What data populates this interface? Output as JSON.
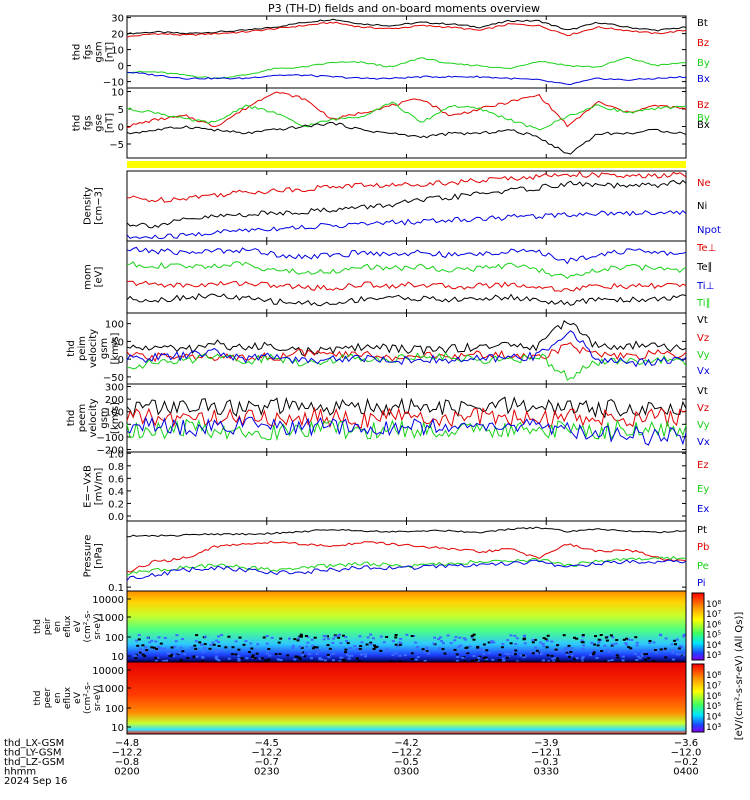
{
  "title": "P3 (TH-D) fields and on-board moments overview",
  "colors": {
    "black": "#000000",
    "red": "#e00000",
    "green": "#19d219",
    "blue": "#0000e0",
    "yellow": "#ffff00",
    "axis": "#000000"
  },
  "chart_data": [
    {
      "type": "line",
      "ylabel": [
        "thd",
        "fgs",
        "gsm",
        "[nT]"
      ],
      "ticks": [
        "30",
        "20",
        "10",
        "0",
        "−10"
      ],
      "tick_values": [
        30,
        20,
        10,
        0,
        -10
      ],
      "ylim": [
        -14,
        31
      ],
      "series": [
        {
          "name": "Bt",
          "color": "black",
          "values": [
            20,
            21,
            20,
            21,
            22,
            24,
            27,
            29,
            26,
            25,
            27,
            26,
            24,
            28,
            28,
            22,
            27,
            24,
            22,
            24
          ]
        },
        {
          "name": "Bz",
          "color": "red",
          "values": [
            18,
            20,
            19,
            20,
            21,
            23,
            25,
            27,
            24,
            23,
            25,
            24,
            22,
            26,
            25,
            19,
            24,
            22,
            20,
            22
          ]
        },
        {
          "name": "By",
          "color": "green",
          "values": [
            -4,
            -4,
            -6,
            -8,
            -6,
            -2,
            -1,
            2,
            2,
            -1,
            5,
            1,
            0,
            -2,
            3,
            0,
            -1,
            5,
            0,
            2
          ]
        },
        {
          "name": "Bx",
          "color": "blue",
          "values": [
            -4,
            -6,
            -8,
            -8,
            -8,
            -6,
            -6,
            -7,
            -8,
            -8,
            -7,
            -7,
            -7,
            -8,
            -9,
            -12,
            -8,
            -9,
            -8,
            -7
          ]
        }
      ]
    },
    {
      "type": "line",
      "ylabel": [
        "thd",
        "fgs",
        "gse",
        "[nT]"
      ],
      "ticks": [
        "10",
        "5",
        "0",
        "−5"
      ],
      "tick_values": [
        10,
        5,
        0,
        -5
      ],
      "ylim": [
        -9,
        11
      ],
      "series": [
        {
          "name": "Bz",
          "color": "red",
          "values": [
            0,
            2,
            3,
            0,
            5,
            10,
            8,
            2,
            4,
            6,
            8,
            3,
            5,
            7,
            9,
            0,
            7,
            4,
            6,
            5
          ]
        },
        {
          "name": "By",
          "color": "green",
          "values": [
            5,
            4,
            2,
            1,
            6,
            4,
            0,
            2,
            3,
            7,
            1,
            6,
            5,
            2,
            -1,
            3,
            6,
            4,
            5,
            6
          ]
        },
        {
          "name": "Bx",
          "color": "black",
          "values": [
            -2,
            -1,
            0,
            -1,
            -2,
            -1,
            0,
            1,
            -1,
            -2,
            -3,
            -2,
            -2,
            -1,
            -3,
            -8,
            -2,
            -2,
            -1,
            -2
          ]
        }
      ]
    },
    {
      "type": "line",
      "ylabel": [
        "Density",
        "[cm−3]"
      ],
      "ticks": [],
      "ylim": [
        0,
        1
      ],
      "series": [
        {
          "name": "Ne",
          "color": "red",
          "values": [
            0.62,
            0.58,
            0.62,
            0.66,
            0.7,
            0.72,
            0.74,
            0.78,
            0.8,
            0.79,
            0.82,
            0.84,
            0.86,
            0.9,
            0.92,
            0.96,
            0.94,
            0.92,
            0.93,
            0.95
          ]
        },
        {
          "name": "Ni",
          "color": "black",
          "values": [
            0.25,
            0.22,
            0.3,
            0.35,
            0.38,
            0.4,
            0.42,
            0.45,
            0.48,
            0.52,
            0.58,
            0.62,
            0.68,
            0.72,
            0.76,
            0.82,
            0.8,
            0.78,
            0.8,
            0.85
          ]
        },
        {
          "name": "Npot",
          "color": "blue",
          "values": [
            0.05,
            0.05,
            0.08,
            0.12,
            0.16,
            0.18,
            0.2,
            0.22,
            0.24,
            0.26,
            0.28,
            0.3,
            0.32,
            0.34,
            0.36,
            0.38,
            0.4,
            0.4,
            0.41,
            0.41
          ]
        }
      ]
    },
    {
      "type": "line",
      "ylabel": [
        "mom",
        "[eV]"
      ],
      "ticks": [],
      "ylim": [
        0,
        1
      ],
      "series": [
        {
          "name": "Te⊥",
          "color": "red",
          "values": [
            0.42,
            0.4,
            0.38,
            0.4,
            0.42,
            0.38,
            0.36,
            0.34,
            0.4,
            0.38,
            0.4,
            0.36,
            0.38,
            0.4,
            0.36,
            0.32,
            0.38,
            0.36,
            0.38,
            0.4
          ]
        },
        {
          "name": "Te∥",
          "color": "black",
          "values": [
            0.2,
            0.18,
            0.22,
            0.24,
            0.2,
            0.16,
            0.14,
            0.12,
            0.2,
            0.22,
            0.2,
            0.18,
            0.2,
            0.22,
            0.18,
            0.12,
            0.2,
            0.18,
            0.2,
            0.22
          ]
        },
        {
          "name": "Ti⊥",
          "color": "blue",
          "values": [
            0.88,
            0.86,
            0.84,
            0.86,
            0.88,
            0.82,
            0.78,
            0.8,
            0.84,
            0.82,
            0.84,
            0.8,
            0.82,
            0.86,
            0.84,
            0.72,
            0.82,
            0.86,
            0.84,
            0.82
          ]
        },
        {
          "name": "Ti∥",
          "color": "green",
          "values": [
            0.68,
            0.66,
            0.64,
            0.66,
            0.68,
            0.6,
            0.56,
            0.58,
            0.64,
            0.62,
            0.64,
            0.6,
            0.62,
            0.66,
            0.6,
            0.48,
            0.6,
            0.64,
            0.62,
            0.6
          ]
        }
      ]
    },
    {
      "type": "line",
      "ylabel": [
        "thd",
        "peim",
        "velocity",
        "gsm",
        "[km/s]"
      ],
      "ticks": [
        "100",
        "50",
        "0",
        "−50"
      ],
      "tick_values": [
        100,
        50,
        0,
        -50
      ],
      "ylim": [
        -70,
        130
      ],
      "series": [
        {
          "name": "Vt",
          "color": "black",
          "values": [
            30,
            35,
            25,
            45,
            30,
            40,
            20,
            25,
            35,
            30,
            25,
            30,
            35,
            40,
            35,
            115,
            30,
            40,
            35,
            30
          ]
        },
        {
          "name": "Vz",
          "color": "red",
          "values": [
            10,
            5,
            15,
            0,
            10,
            5,
            20,
            10,
            15,
            5,
            10,
            5,
            15,
            10,
            5,
            40,
            10,
            5,
            15,
            10
          ]
        },
        {
          "name": "Vy",
          "color": "green",
          "values": [
            -20,
            -10,
            -5,
            15,
            -5,
            5,
            -10,
            0,
            5,
            0,
            10,
            5,
            0,
            -5,
            10,
            -50,
            -10,
            -5,
            0,
            -10
          ]
        },
        {
          "name": "Vx",
          "color": "blue",
          "values": [
            0,
            5,
            10,
            20,
            0,
            10,
            -5,
            0,
            5,
            -5,
            0,
            -5,
            0,
            5,
            10,
            80,
            0,
            -10,
            -5,
            0
          ]
        }
      ]
    },
    {
      "type": "line",
      "ylabel": [
        "thd",
        "peem",
        "velocity",
        "gsm",
        "[km/s]"
      ],
      "ticks": [
        "300",
        "200",
        "100",
        "0",
        "−100",
        "−200"
      ],
      "tick_values": [
        300,
        200,
        100,
        0,
        -100,
        -200
      ],
      "ylim": [
        -220,
        320
      ],
      "series": [
        {
          "name": "Vt",
          "color": "black",
          "values": [
            120,
            140,
            130,
            150,
            120,
            140,
            130,
            120,
            150,
            130,
            140,
            120,
            130,
            150,
            140,
            130,
            120,
            140,
            130,
            120
          ]
        },
        {
          "name": "Vz",
          "color": "red",
          "values": [
            60,
            50,
            40,
            60,
            50,
            40,
            60,
            50,
            40,
            60,
            50,
            40,
            60,
            50,
            40,
            60,
            50,
            40,
            60,
            50
          ]
        },
        {
          "name": "Vy",
          "color": "green",
          "values": [
            -40,
            -60,
            -30,
            -50,
            -40,
            -70,
            -30,
            -40,
            -60,
            -30,
            -50,
            -40,
            -60,
            -30,
            -50,
            -40,
            -60,
            -30,
            -50,
            -40
          ]
        },
        {
          "name": "Vx",
          "color": "blue",
          "values": [
            -20,
            -10,
            -30,
            -20,
            -10,
            -20,
            -30,
            -10,
            -20,
            -30,
            -10,
            -20,
            -30,
            -10,
            -20,
            -40,
            -60,
            -80,
            -100,
            -90
          ]
        }
      ]
    },
    {
      "type": "line",
      "ylabel": [
        "E=−VxB",
        "[mV/m]"
      ],
      "ticks": [
        "1.0",
        "0.8",
        "0.6",
        "0.4",
        "0.2",
        "0.0"
      ],
      "tick_values": [
        1.0,
        0.8,
        0.6,
        0.4,
        0.2,
        0.0
      ],
      "ylim": [
        -0.08,
        1.02
      ],
      "series": [
        {
          "name": "Ez",
          "color": "red",
          "values": []
        },
        {
          "name": "Ey",
          "color": "green",
          "values": []
        },
        {
          "name": "Ex",
          "color": "blue",
          "values": []
        }
      ]
    },
    {
      "type": "line",
      "ylabel": [
        "Pressure",
        "[nPa]"
      ],
      "ticks": [
        "0.1"
      ],
      "tick_values": [
        0.1
      ],
      "ylim": [
        0.09,
        0.6
      ],
      "series": [
        {
          "name": "Pt",
          "color": "black",
          "values": [
            0.4,
            0.4,
            0.41,
            0.42,
            0.42,
            0.43,
            0.45,
            0.48,
            0.46,
            0.45,
            0.46,
            0.46,
            0.44,
            0.48,
            0.5,
            0.45,
            0.48,
            0.46,
            0.44,
            0.46
          ]
        },
        {
          "name": "Pb",
          "color": "red",
          "values": [
            0.15,
            0.2,
            0.22,
            0.3,
            0.32,
            0.34,
            0.32,
            0.3,
            0.34,
            0.32,
            0.3,
            0.28,
            0.26,
            0.28,
            0.22,
            0.32,
            0.26,
            0.28,
            0.22,
            0.2
          ]
        },
        {
          "name": "Pe",
          "color": "green",
          "values": [
            0.14,
            0.16,
            0.17,
            0.18,
            0.17,
            0.16,
            0.17,
            0.18,
            0.19,
            0.18,
            0.18,
            0.19,
            0.2,
            0.2,
            0.21,
            0.18,
            0.2,
            0.21,
            0.22,
            0.22
          ]
        },
        {
          "name": "Pi",
          "color": "blue",
          "values": [
            0.13,
            0.14,
            0.16,
            0.17,
            0.16,
            0.15,
            0.15,
            0.16,
            0.17,
            0.17,
            0.17,
            0.18,
            0.18,
            0.19,
            0.2,
            0.17,
            0.19,
            0.2,
            0.2,
            0.2
          ]
        }
      ]
    },
    {
      "type": "heatmap",
      "ylabel": [
        "thd",
        "peir",
        "en",
        "eflux",
        "eV",
        "(cm²-s-",
        "sr-eV)"
      ],
      "ticks": [
        "10000",
        "1000",
        "100",
        "10"
      ],
      "colorbar_label": "[eV/(cm²-s-sr-eV) (All Qs)]",
      "colorbar_ticks": [
        "10⁸",
        "10⁷",
        "10⁶",
        "10⁵",
        "10⁴",
        "10³"
      ]
    },
    {
      "type": "heatmap",
      "ylabel": [
        "thd",
        "peer",
        "en",
        "eflux",
        "eV",
        "(cm²-s-",
        "sr-eV)"
      ],
      "ticks": [
        "10000",
        "1000",
        "100",
        "10"
      ],
      "colorbar_label": "[eV/(cm²-s-sr-eV) (All Qs)]",
      "colorbar_ticks": [
        "10⁸",
        "10⁷",
        "10⁶",
        "10⁵",
        "10⁴",
        "10³"
      ]
    }
  ],
  "xaxis": {
    "rows": [
      {
        "label": "thd_LX-GSM",
        "values": [
          "−4.8",
          "−4.5",
          "−4.2",
          "−3.9",
          "−3.6"
        ]
      },
      {
        "label": "thd_LY-GSM",
        "values": [
          "−12.2",
          "−12.2",
          "−12.2",
          "−12.1",
          "−12.0"
        ]
      },
      {
        "label": "thd_LZ-GSM",
        "values": [
          "−0.8",
          "−0.7",
          "−0.5",
          "−0.3",
          "−0.2"
        ]
      },
      {
        "label": "hhmm",
        "values": [
          "0200",
          "0230",
          "0300",
          "0330",
          "0400"
        ]
      }
    ],
    "date": "2024 Sep 16"
  }
}
